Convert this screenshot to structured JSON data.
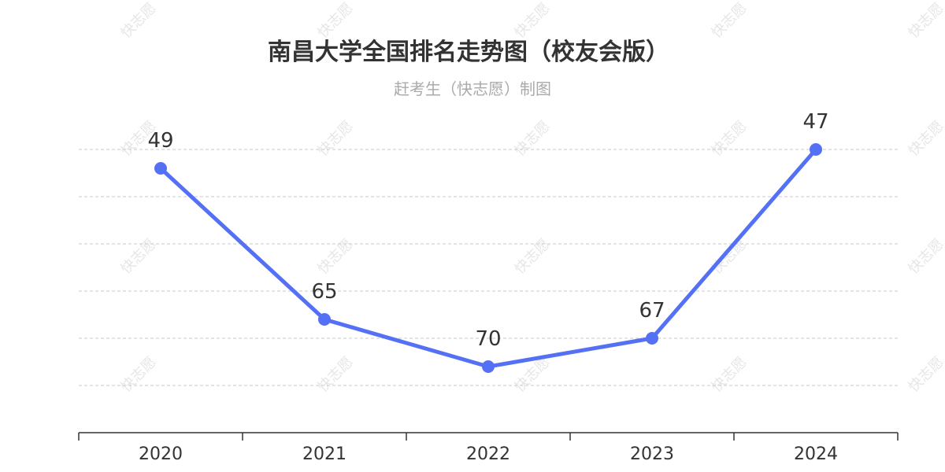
{
  "watermark_text": "快志愿",
  "chart_data": {
    "type": "line",
    "title": "南昌大学全国排名走势图（校友会版）",
    "subtitle": "赶考生（快志愿）制图",
    "categories": [
      "2020",
      "2021",
      "2022",
      "2023",
      "2024"
    ],
    "series": [
      {
        "values": [
          49,
          65,
          70,
          67,
          47
        ]
      }
    ],
    "y_inverse": true,
    "ylim": [
      47,
      77
    ],
    "grid": true,
    "xlabel": "",
    "ylabel": "",
    "line_color": "#5470f5",
    "grid_color": "#c8c8c8",
    "axis_color": "#333333"
  }
}
